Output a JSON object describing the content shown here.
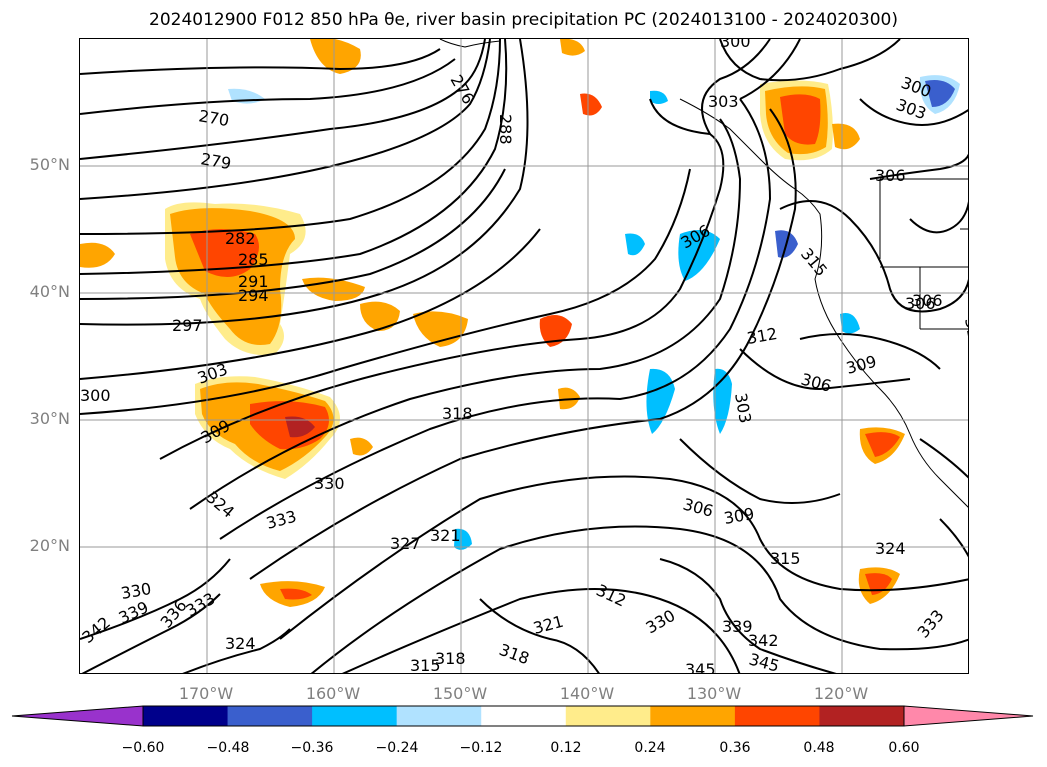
{
  "title": "2024012900 F012 850 hPa θe, river basin precipitation PC (2024013100 - 2024020300)",
  "lat_labels": [
    "50°N",
    "40°N",
    "30°N",
    "20°N"
  ],
  "lon_labels": [
    "170°W",
    "160°W",
    "150°W",
    "140°W",
    "130°W",
    "120°W"
  ],
  "colorbar": {
    "ticks": [
      "−0.60",
      "−0.48",
      "−0.36",
      "−0.24",
      "−0.12",
      "0.12",
      "0.24",
      "0.36",
      "0.48",
      "0.60"
    ],
    "colors": [
      "#9932cc",
      "#00008b",
      "#3a5fcd",
      "#00bfff",
      "#b0e2ff",
      "#ffffff",
      "#ffec8b",
      "#ffa500",
      "#ff4500",
      "#b22222",
      "#ff88aa"
    ]
  },
  "contour_labels": [
    "270",
    "279",
    "282",
    "285",
    "291",
    "294",
    "297",
    "300",
    "303",
    "309",
    "318",
    "324",
    "330",
    "333",
    "327",
    "321",
    "330",
    "339",
    "336",
    "333",
    "342",
    "324",
    "306",
    "312",
    "306",
    "309",
    "303",
    "315",
    "306",
    "300",
    "303",
    "306",
    "315",
    "312",
    "321",
    "318",
    "315",
    "318",
    "330",
    "339",
    "342",
    "345",
    "345",
    "324",
    "333",
    "303",
    "306",
    "300",
    "276",
    "288",
    "309",
    "306",
    "315"
  ]
}
